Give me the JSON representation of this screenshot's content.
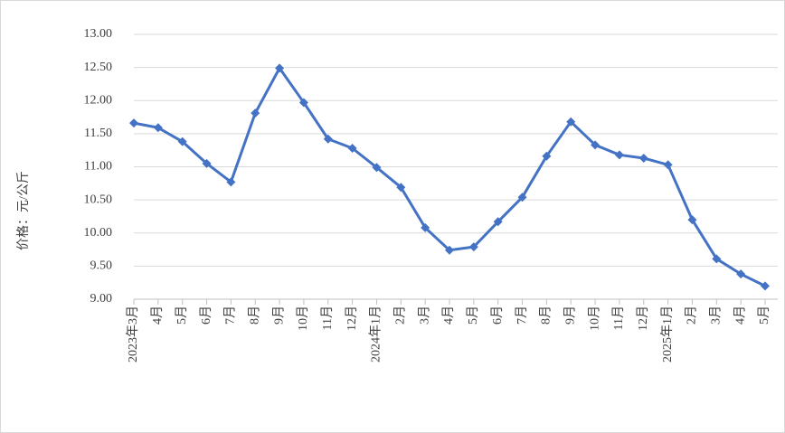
{
  "chart_data": {
    "type": "line",
    "y_label": "价格：元/公斤",
    "categories": [
      "2023年3月",
      "4月",
      "5月",
      "6月",
      "7月",
      "8月",
      "9月",
      "10月",
      "11月",
      "12月",
      "2024年1月",
      "2月",
      "3月",
      "4月",
      "5月",
      "6月",
      "7月",
      "8月",
      "9月",
      "10月",
      "11月",
      "12月",
      "2025年1月",
      "2月",
      "3月",
      "4月",
      "5月"
    ],
    "values": [
      11.66,
      11.59,
      11.38,
      11.05,
      10.77,
      11.81,
      12.49,
      11.97,
      11.42,
      11.28,
      10.99,
      10.69,
      10.08,
      9.74,
      9.79,
      10.17,
      10.54,
      11.16,
      11.68,
      11.33,
      11.18,
      11.13,
      11.03,
      10.2,
      9.61,
      9.38,
      9.2
    ],
    "color": "#4472c4",
    "ylim": [
      9,
      13
    ],
    "yticks": [
      {
        "value": 9,
        "label": "9.00"
      },
      {
        "value": 9.5,
        "label": "9.50"
      },
      {
        "value": 10,
        "label": "10.00"
      },
      {
        "value": 10.5,
        "label": "10.50"
      },
      {
        "value": 11,
        "label": "11.00"
      },
      {
        "value": 11.5,
        "label": "11.50"
      },
      {
        "value": 12,
        "label": "12.00"
      },
      {
        "value": 12.5,
        "label": "12.50"
      },
      {
        "value": 13,
        "label": "13.00"
      }
    ],
    "grid": true
  }
}
